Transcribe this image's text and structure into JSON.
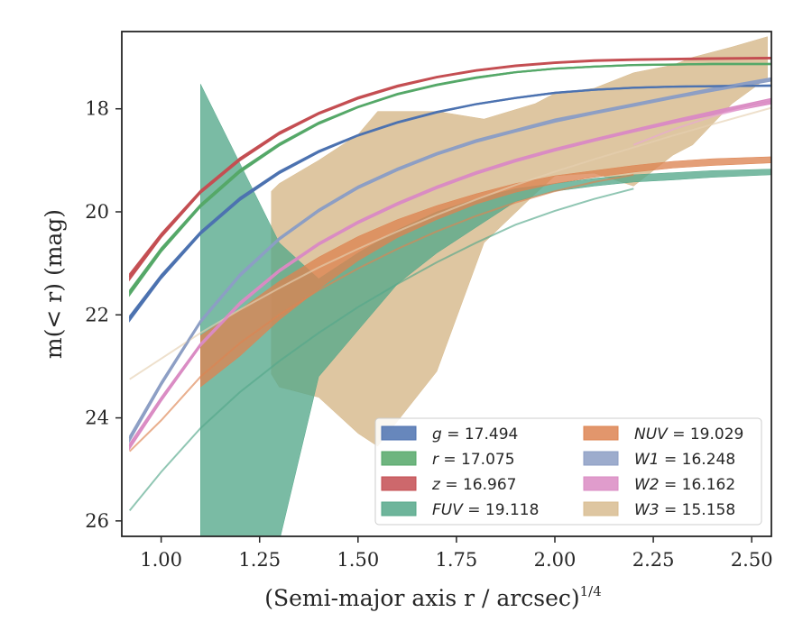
{
  "chart_data": {
    "type": "area",
    "xlabel": "(Semi-major axis r / arcsec)",
    "xlabel_exponent": "1/4",
    "ylabel": "m(< r) (mag)",
    "xlim": [
      0.9,
      2.55
    ],
    "ylim": [
      26.3,
      16.5
    ],
    "y_inverted": true,
    "x_ticks": [
      1.0,
      1.25,
      1.5,
      1.75,
      2.0,
      2.25,
      2.5
    ],
    "x_tick_labels": [
      "1.00",
      "1.25",
      "1.50",
      "1.75",
      "2.00",
      "2.25",
      "2.50"
    ],
    "y_ticks": [
      18,
      20,
      22,
      24,
      26
    ],
    "y_tick_labels": [
      "18",
      "20",
      "22",
      "24",
      "26"
    ],
    "grid": false,
    "legend_placement": "lower-right",
    "legend_columns": 2,
    "series": [
      {
        "name": "g",
        "legend_value": "17.494",
        "color": "#4c72b0",
        "line": true,
        "x": [
          0.92,
          1.0,
          1.1,
          1.2,
          1.3,
          1.4,
          1.5,
          1.6,
          1.7,
          1.8,
          1.9,
          2.0,
          2.1,
          2.2,
          2.3,
          2.4,
          2.55
        ],
        "lower": [
          22.02,
          21.22,
          20.38,
          19.72,
          19.21,
          18.81,
          18.5,
          18.25,
          18.05,
          17.9,
          17.78,
          17.68,
          17.62,
          17.58,
          17.56,
          17.55,
          17.54
        ],
        "upper": [
          22.12,
          21.3,
          20.44,
          19.78,
          19.26,
          18.85,
          18.53,
          18.28,
          18.08,
          17.92,
          17.8,
          17.7,
          17.64,
          17.6,
          17.58,
          17.57,
          17.56
        ]
      },
      {
        "name": "r",
        "legend_value": "17.075",
        "color": "#55a868",
        "line": true,
        "x": [
          0.92,
          1.0,
          1.1,
          1.2,
          1.3,
          1.4,
          1.5,
          1.6,
          1.7,
          1.8,
          1.9,
          2.0,
          2.1,
          2.2,
          2.3,
          2.4,
          2.55
        ],
        "lower": [
          21.52,
          20.7,
          19.85,
          19.18,
          18.67,
          18.26,
          17.95,
          17.7,
          17.52,
          17.38,
          17.28,
          17.21,
          17.17,
          17.14,
          17.13,
          17.12,
          17.12
        ],
        "upper": [
          21.62,
          20.78,
          19.91,
          19.24,
          18.72,
          18.3,
          17.98,
          17.73,
          17.55,
          17.41,
          17.3,
          17.23,
          17.19,
          17.16,
          17.15,
          17.14,
          17.14
        ]
      },
      {
        "name": "z",
        "legend_value": "16.967",
        "color": "#c44e52",
        "line": true,
        "x": [
          0.92,
          1.0,
          1.1,
          1.2,
          1.3,
          1.4,
          1.5,
          1.6,
          1.7,
          1.8,
          1.9,
          2.0,
          2.1,
          2.2,
          2.3,
          2.4,
          2.55
        ],
        "lower": [
          21.2,
          20.42,
          19.58,
          18.95,
          18.45,
          18.07,
          17.77,
          17.54,
          17.37,
          17.24,
          17.15,
          17.09,
          17.05,
          17.03,
          17.02,
          17.01,
          17.0
        ],
        "upper": [
          21.32,
          20.5,
          19.64,
          19.01,
          18.5,
          18.11,
          17.81,
          17.58,
          17.4,
          17.27,
          17.18,
          17.12,
          17.08,
          17.06,
          17.05,
          17.04,
          17.03
        ]
      },
      {
        "name": "FUV",
        "legend_value": "19.118",
        "color": "#8172b3",
        "fill": "#55a88a",
        "line": false,
        "x": [
          1.1,
          1.3,
          1.4,
          1.5,
          1.6,
          1.7,
          1.8,
          1.9,
          2.0,
          2.1,
          2.2,
          2.3,
          2.4,
          2.55
        ],
        "lower": [
          17.52,
          20.6,
          21.3,
          20.8,
          20.35,
          20.0,
          19.75,
          19.55,
          19.45,
          19.35,
          19.28,
          19.24,
          19.2,
          19.17
        ],
        "upper": [
          26.4,
          26.4,
          23.2,
          22.3,
          21.4,
          20.8,
          20.3,
          19.8,
          19.6,
          19.5,
          19.42,
          19.38,
          19.33,
          19.28
        ]
      },
      {
        "name": "NUV",
        "legend_value": "19.029",
        "color": "#dd8452",
        "line": false,
        "x": [
          1.1,
          1.2,
          1.3,
          1.4,
          1.5,
          1.6,
          1.7,
          1.8,
          1.9,
          2.0,
          2.1,
          2.2,
          2.3,
          2.4,
          2.55
        ],
        "lower": [
          22.4,
          21.9,
          21.35,
          20.88,
          20.48,
          20.15,
          19.88,
          19.65,
          19.45,
          19.3,
          19.2,
          19.1,
          19.02,
          18.97,
          18.93
        ],
        "upper": [
          23.4,
          22.8,
          22.1,
          21.5,
          20.95,
          20.5,
          20.15,
          19.85,
          19.62,
          19.45,
          19.33,
          19.23,
          19.15,
          19.1,
          19.05
        ]
      },
      {
        "name": "W1",
        "legend_value": "16.248",
        "color": "#8c9ec4",
        "line": true,
        "x": [
          0.92,
          1.0,
          1.1,
          1.2,
          1.3,
          1.4,
          1.5,
          1.6,
          1.7,
          1.8,
          1.9,
          2.0,
          2.1,
          2.2,
          2.3,
          2.4,
          2.55
        ],
        "lower": [
          24.35,
          23.3,
          22.1,
          21.2,
          20.5,
          19.95,
          19.5,
          19.15,
          18.85,
          18.6,
          18.4,
          18.2,
          18.05,
          17.9,
          17.75,
          17.6,
          17.4
        ],
        "upper": [
          24.45,
          23.38,
          22.16,
          21.26,
          20.55,
          20.0,
          19.55,
          19.2,
          18.9,
          18.65,
          18.45,
          18.26,
          18.1,
          17.95,
          17.8,
          17.66,
          17.46
        ]
      },
      {
        "name": "W2",
        "legend_value": "16.162",
        "color": "#da8bc3",
        "line": true,
        "x": [
          0.92,
          1.0,
          1.1,
          1.2,
          1.3,
          1.4,
          1.5,
          1.6,
          1.7,
          1.8,
          1.9,
          2.0,
          2.1,
          2.2,
          2.3,
          2.4,
          2.55
        ],
        "lower": [
          24.5,
          23.6,
          22.55,
          21.75,
          21.12,
          20.6,
          20.18,
          19.82,
          19.5,
          19.22,
          18.98,
          18.77,
          18.58,
          18.4,
          18.22,
          18.05,
          17.8
        ],
        "upper": [
          24.6,
          23.68,
          22.61,
          21.81,
          21.17,
          20.65,
          20.23,
          19.87,
          19.55,
          19.27,
          19.03,
          18.82,
          18.63,
          18.45,
          18.28,
          18.12,
          17.9
        ]
      },
      {
        "name": "W3",
        "legend_value": "15.158",
        "color": "#ccb07a",
        "fill": "#d8bc90",
        "line": false,
        "x": [
          1.28,
          1.3,
          1.4,
          1.5,
          1.55,
          1.7,
          1.82,
          1.95,
          2.0,
          2.1,
          2.2,
          2.3,
          2.35,
          2.4,
          2.45,
          2.54
        ],
        "lower": [
          19.6,
          19.45,
          19.0,
          18.5,
          18.05,
          18.05,
          18.2,
          17.9,
          17.7,
          17.6,
          17.3,
          17.15,
          17.0,
          16.9,
          16.8,
          16.6
        ],
        "upper": [
          23.15,
          23.4,
          23.6,
          24.3,
          24.55,
          23.1,
          20.6,
          19.65,
          19.3,
          19.25,
          19.5,
          18.9,
          18.7,
          18.3,
          17.9,
          17.4
        ]
      }
    ],
    "single_lines": [
      {
        "series": "NUV",
        "color": "#dd8452",
        "x": [
          0.92,
          1.0,
          1.1,
          1.2,
          1.3,
          1.4,
          1.5,
          1.6,
          1.7,
          1.8,
          1.9,
          2.0,
          2.1,
          2.2
        ],
        "y": [
          24.65,
          24.05,
          23.2,
          22.55,
          22.0,
          21.52,
          21.1,
          20.72,
          20.38,
          20.08,
          19.82,
          19.6,
          19.42,
          19.28
        ]
      },
      {
        "series": "FUV",
        "color": "#55a88a",
        "x": [
          0.92,
          1.0,
          1.1,
          1.2,
          1.3,
          1.4,
          1.5,
          1.6,
          1.7,
          1.8,
          1.9,
          2.0,
          2.1,
          2.2
        ],
        "y": [
          25.8,
          25.05,
          24.2,
          23.5,
          22.9,
          22.35,
          21.85,
          21.4,
          20.98,
          20.6,
          20.25,
          19.98,
          19.75,
          19.55
        ]
      },
      {
        "series": "W3",
        "color": "#e5cfb0",
        "x": [
          0.92,
          1.0,
          1.1,
          1.2,
          1.3,
          1.4,
          1.5,
          1.6,
          1.7,
          1.8,
          1.9,
          2.0,
          2.1,
          2.2,
          2.3,
          2.4,
          2.55
        ],
        "y": [
          23.25,
          22.85,
          22.35,
          21.9,
          21.48,
          21.08,
          20.72,
          20.38,
          20.06,
          19.76,
          19.48,
          19.22,
          18.98,
          18.75,
          18.52,
          18.3,
          17.98
        ]
      },
      {
        "series": "W2",
        "color": "#e8a8d6",
        "x": [
          2.2,
          2.3,
          2.4,
          2.55
        ],
        "y": [
          18.7,
          18.4,
          18.15,
          17.85
        ]
      }
    ]
  }
}
